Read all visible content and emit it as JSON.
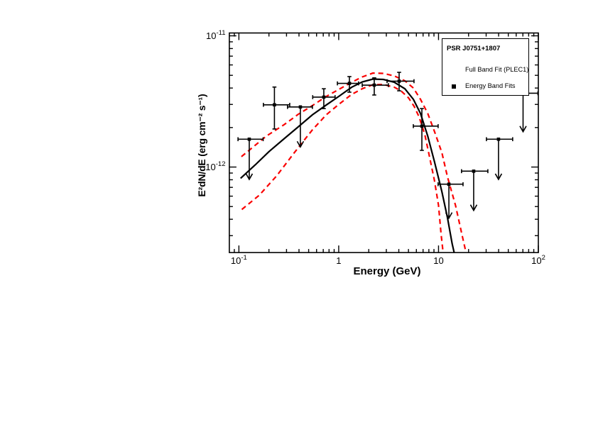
{
  "legend": {
    "title": "PSR J0751+1807",
    "entries": [
      {
        "label": "Full Band Fit (PLEC1)",
        "sample": "line"
      },
      {
        "label": "Energy Band Fits",
        "sample": "line-with-square-marker"
      }
    ]
  },
  "colors": {
    "fit_curve": "#000000",
    "uncertainty_band": "#fa0000",
    "data_points": "#000000",
    "background": "#ffffff"
  },
  "chart_data": {
    "type": "line",
    "title": "PSR J0751+1807",
    "xlabel": "Energy (GeV)",
    "ylabel": "E²dN/dE (erg cm⁻² s⁻¹)",
    "xscale": "log",
    "yscale": "log",
    "xlim": [
      0.0802,
      100
    ],
    "ylim": [
      2.23e-13,
      1.051e-11
    ],
    "grid": false,
    "legend_position": "top-right",
    "xticks": [
      {
        "v": 0.1,
        "label": "10^-1"
      },
      {
        "v": 1,
        "label": "1"
      },
      {
        "v": 10,
        "label": "10"
      },
      {
        "v": 100,
        "label": "10^2"
      }
    ],
    "yticks": [
      {
        "v": 1e-12,
        "label": "10^-12"
      },
      {
        "v": 1e-11,
        "label": "10^-11"
      }
    ],
    "series": [
      {
        "name": "Full Band Fit (PLEC1)",
        "style": "solid",
        "color": "#000000",
        "points": [
          [
            0.104,
            8.2e-13
          ],
          [
            0.146,
            1.04e-12
          ],
          [
            0.2,
            1.31e-12
          ],
          [
            0.283,
            1.64e-12
          ],
          [
            0.392,
            2.02e-12
          ],
          [
            0.545,
            2.5e-12
          ],
          [
            0.75,
            2.97e-12
          ],
          [
            1.0,
            3.45e-12
          ],
          [
            1.35,
            4.06e-12
          ],
          [
            1.72,
            4.45e-12
          ],
          [
            2.2,
            4.68e-12
          ],
          [
            2.8,
            4.65e-12
          ],
          [
            3.6,
            4.43e-12
          ],
          [
            4.6,
            3.95e-12
          ],
          [
            5.6,
            3.28e-12
          ],
          [
            6.6,
            2.56e-12
          ],
          [
            7.8,
            1.72e-12
          ],
          [
            9.1,
            1.1e-12
          ],
          [
            10.8,
            6.5e-13
          ],
          [
            12.3,
            4.1e-13
          ],
          [
            13.7,
            2.6e-13
          ],
          [
            14.4,
            2.2e-13
          ]
        ]
      },
      {
        "name": "Fit uncertainty (upper)",
        "style": "dashed",
        "color": "#fa0000",
        "points": [
          [
            0.106,
            1.2e-12
          ],
          [
            0.188,
            1.72e-12
          ],
          [
            0.283,
            2.1e-12
          ],
          [
            0.392,
            2.52e-12
          ],
          [
            0.545,
            2.94e-12
          ],
          [
            0.75,
            3.45e-12
          ],
          [
            1.0,
            3.9e-12
          ],
          [
            1.35,
            4.43e-12
          ],
          [
            1.72,
            4.86e-12
          ],
          [
            2.2,
            5.2e-12
          ],
          [
            2.8,
            5.17e-12
          ],
          [
            3.6,
            4.95e-12
          ],
          [
            4.6,
            4.54e-12
          ],
          [
            5.6,
            4e-12
          ],
          [
            6.6,
            3.28e-12
          ],
          [
            7.8,
            2.56e-12
          ],
          [
            9.1,
            1.87e-12
          ],
          [
            10.8,
            1.29e-12
          ],
          [
            12.3,
            8.4e-13
          ],
          [
            14.8,
            5.1e-13
          ],
          [
            17.1,
            3.1e-13
          ],
          [
            18.8,
            2.25e-13
          ]
        ]
      },
      {
        "name": "Fit uncertainty (lower)",
        "style": "dashed",
        "color": "#fa0000",
        "points": [
          [
            0.107,
            4.75e-13
          ],
          [
            0.16,
            6.1e-13
          ],
          [
            0.24,
            8.6e-13
          ],
          [
            0.36,
            1.29e-12
          ],
          [
            0.545,
            1.92e-12
          ],
          [
            0.75,
            2.5e-12
          ],
          [
            1.0,
            3e-12
          ],
          [
            1.35,
            3.58e-12
          ],
          [
            1.72,
            3.95e-12
          ],
          [
            2.2,
            4.24e-12
          ],
          [
            2.8,
            4.26e-12
          ],
          [
            3.6,
            4.06e-12
          ],
          [
            4.2,
            3.81e-12
          ],
          [
            5.0,
            3.37e-12
          ],
          [
            5.7,
            2.9e-12
          ],
          [
            6.4,
            2.4e-12
          ],
          [
            7.3,
            1.76e-12
          ],
          [
            8.1,
            1.21e-12
          ],
          [
            9.1,
            7.9e-13
          ],
          [
            10.0,
            5.1e-13
          ],
          [
            10.6,
            3.1e-13
          ],
          [
            11.1,
            2.25e-13
          ]
        ]
      },
      {
        "name": "Energy Band Fits",
        "style": "scatter-squares",
        "color": "#000000",
        "points_detail": [
          {
            "e": 0.127,
            "e_lo": 0.098,
            "e_hi": 0.175,
            "f": 1.63e-12,
            "upper_limit": true,
            "arrow_tip": 8.1e-13
          },
          {
            "e": 0.227,
            "e_lo": 0.176,
            "e_hi": 0.323,
            "f": 2.98e-12,
            "f_lo": 1.95e-12,
            "f_hi": 4.07e-12
          },
          {
            "e": 0.413,
            "e_lo": 0.307,
            "e_hi": 0.545,
            "f": 2.87e-12,
            "upper_limit": true,
            "arrow_tip": 1.43e-12
          },
          {
            "e": 0.709,
            "e_lo": 0.549,
            "e_hi": 0.92,
            "f": 3.41e-12,
            "f_lo": 2.79e-12,
            "f_hi": 3.95e-12
          },
          {
            "e": 1.28,
            "e_lo": 0.97,
            "e_hi": 1.58,
            "f": 4.34e-12,
            "f_lo": 3.72e-12,
            "f_hi": 4.89e-12
          },
          {
            "e": 2.27,
            "e_lo": 1.72,
            "e_hi": 3.15,
            "f": 4.21e-12,
            "f_lo": 3.54e-12,
            "f_hi": 4.78e-12
          },
          {
            "e": 4.03,
            "e_lo": 3.05,
            "e_hi": 5.68,
            "f": 4.51e-12,
            "f_lo": 3.81e-12,
            "f_hi": 5.27e-12
          },
          {
            "e": 6.81,
            "e_lo": 5.59,
            "e_hi": 9.91,
            "f": 2.05e-12,
            "f_lo": 1.34e-12,
            "f_hi": 2.79e-12
          },
          {
            "e": 12.7,
            "e_lo": 9.9,
            "e_hi": 17.6,
            "f": 7.4e-13,
            "upper_limit": true,
            "arrow_tip": 4.1e-13
          },
          {
            "e": 22.5,
            "e_lo": 17.0,
            "e_hi": 31.2,
            "f": 9.3e-13,
            "upper_limit": true,
            "arrow_tip": 4.7e-13
          },
          {
            "e": 39.9,
            "e_lo": 30.2,
            "e_hi": 55.3,
            "f": 1.63e-12,
            "upper_limit": true,
            "arrow_tip": 8.1e-13
          },
          {
            "e": 70.3,
            "e_lo": 52.0,
            "e_hi": 99.0,
            "f": 3.65e-12,
            "upper_limit": true,
            "arrow_tip": 1.87e-12
          }
        ]
      }
    ]
  }
}
